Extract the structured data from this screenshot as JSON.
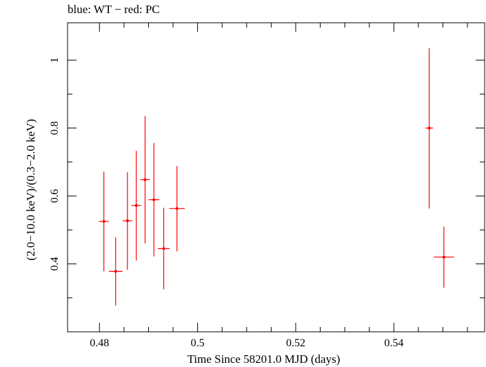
{
  "chart_data": {
    "type": "scatter",
    "title": "blue: WT − red: PC",
    "xlabel": "Time Since 58201.0 MJD (days)",
    "ylabel": "(2.0−10.0 keV)/(0.3−2.0 keV)",
    "xlim": [
      0.4735,
      0.5585
    ],
    "ylim": [
      0.2,
      1.11
    ],
    "x_ticks": [
      0.48,
      0.5,
      0.52,
      0.54
    ],
    "x_tick_labels": [
      "0.48",
      "0.5",
      "0.52",
      "0.54"
    ],
    "x_minor_ticks": [
      0.485,
      0.49,
      0.495,
      0.505,
      0.51,
      0.515,
      0.525,
      0.53,
      0.535,
      0.545,
      0.55,
      0.555
    ],
    "y_ticks": [
      0.4,
      0.6,
      0.8,
      1.0
    ],
    "y_tick_labels": [
      "0.4",
      "0.6",
      "0.8",
      "1"
    ],
    "y_minor_ticks": [
      0.3,
      0.5,
      0.7,
      0.9
    ],
    "grid": false,
    "series": [
      {
        "name": "PC",
        "color": "#ff0000",
        "points": [
          {
            "x": 0.4809,
            "xerr": 0.001,
            "y": 0.525,
            "ylo": 0.378,
            "yhi": 0.672
          },
          {
            "x": 0.4833,
            "xerr": 0.0014,
            "y": 0.378,
            "ylo": 0.277,
            "yhi": 0.478
          },
          {
            "x": 0.4857,
            "xerr": 0.001,
            "y": 0.527,
            "ylo": 0.382,
            "yhi": 0.67
          },
          {
            "x": 0.4875,
            "xerr": 0.001,
            "y": 0.572,
            "ylo": 0.41,
            "yhi": 0.733
          },
          {
            "x": 0.4893,
            "xerr": 0.001,
            "y": 0.648,
            "ylo": 0.46,
            "yhi": 0.835
          },
          {
            "x": 0.4911,
            "xerr": 0.0011,
            "y": 0.589,
            "ylo": 0.422,
            "yhi": 0.756
          },
          {
            "x": 0.4931,
            "xerr": 0.0012,
            "y": 0.445,
            "ylo": 0.325,
            "yhi": 0.565
          },
          {
            "x": 0.4958,
            "xerr": 0.0016,
            "y": 0.563,
            "ylo": 0.437,
            "yhi": 0.688
          },
          {
            "x": 0.5472,
            "xerr": 0.0008,
            "y": 0.8,
            "ylo": 0.563,
            "yhi": 1.035
          },
          {
            "x": 0.5502,
            "xerr": 0.0021,
            "y": 0.42,
            "ylo": 0.33,
            "yhi": 0.51
          }
        ]
      }
    ]
  }
}
